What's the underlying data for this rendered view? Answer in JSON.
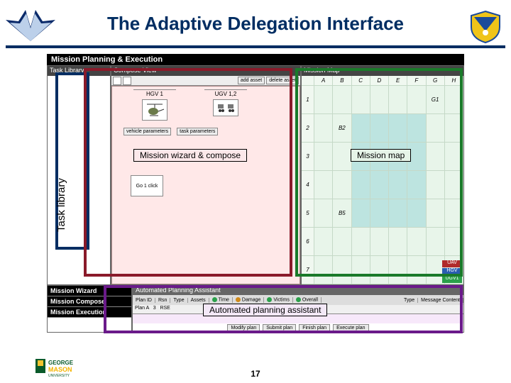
{
  "page": {
    "title": "The Adaptive Delegation Interface",
    "page_number": "17",
    "colors": {
      "title_text": "#002d62",
      "divider": "#002d62"
    }
  },
  "app": {
    "window_title": "Mission Planning & Execution",
    "panels": {
      "task_library": {
        "header": "Task Library"
      },
      "compose": {
        "header": "Compose View",
        "buttons": {
          "add_asset": "add asset",
          "delete_asset": "delete asset"
        },
        "assets": [
          {
            "label": "HGV 1"
          },
          {
            "label": "UGV 1,2"
          }
        ],
        "param_btns": {
          "vehicle": "vehicle parameters",
          "task": "task parameters"
        },
        "go_block": "Go 1 click"
      },
      "mission_map": {
        "header": "Mission Map",
        "cols": [
          "A",
          "B",
          "C",
          "D",
          "E",
          "F",
          "G",
          "H"
        ],
        "rows": [
          "1",
          "2",
          "3",
          "4",
          "5",
          "6",
          "7"
        ],
        "labeled_cells": {
          "G1": "G1",
          "B2": "B2",
          "B5": "B5"
        },
        "cyan_columns": [
          3,
          4,
          5,
          6
        ],
        "legend": [
          {
            "label": "UAV",
            "color": "#b02a2a"
          },
          {
            "label": "HGV",
            "color": "#2a5db0"
          },
          {
            "label": "UGV1",
            "color": "#2aa04a"
          }
        ]
      },
      "bottom_nav": {
        "items": [
          "Mission Wizard",
          "Mission Compose",
          "Mission Execution"
        ]
      },
      "apa": {
        "header": "Automated Planning Assistant",
        "tabs_row1": [
          "Plan ID",
          "Rsn",
          "Type",
          "Assets",
          "Time",
          "Damage",
          "Victims",
          "Overall"
        ],
        "tabs_row2_cells": [
          "Plan A",
          "3",
          "RSE"
        ],
        "right_header": [
          "Type",
          "Message Content"
        ],
        "buttons": [
          "Modify plan",
          "Submit plan",
          "Finish plan",
          "Execute plan"
        ],
        "tab_colors": {
          "Time": "#2aa04a",
          "Damage": "#d08a1a",
          "Victims": "#2aa04a",
          "Overall": "#2aa04a"
        }
      }
    }
  },
  "annotations": {
    "task_library": {
      "label": "Task library",
      "border": "#002d62",
      "bg": "#ffffff"
    },
    "mission_wizard_compose": {
      "label": "Mission wizard & compose",
      "border": "#8a1a2a",
      "bg": "#fce8ea",
      "label_border": "#000000"
    },
    "mission_map": {
      "label": "Mission map",
      "border": "#1a7a2a",
      "bg": "#e6f4e8"
    },
    "apa": {
      "label": "Automated planning assistant",
      "border": "#6a1a8a",
      "bg": "#f3e8f7"
    }
  }
}
